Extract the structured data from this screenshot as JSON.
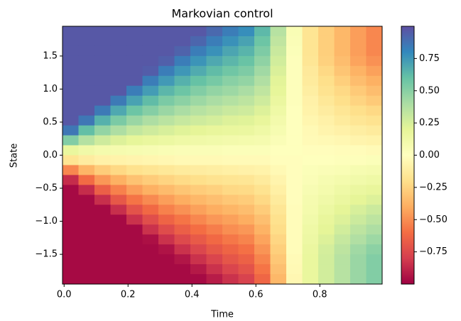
{
  "chart_data": {
    "type": "heatmap",
    "title": "Markovian control",
    "xlabel": "Time",
    "ylabel": "State",
    "colormap": "Spectral",
    "clim": [
      -1,
      1
    ],
    "x": [
      0.02,
      0.07,
      0.12,
      0.17,
      0.22,
      0.27,
      0.32,
      0.37,
      0.42,
      0.47,
      0.52,
      0.57,
      0.62,
      0.67,
      0.72,
      0.77,
      0.82,
      0.87,
      0.92,
      0.97
    ],
    "y": [
      1.875,
      1.725,
      1.575,
      1.425,
      1.275,
      1.125,
      0.975,
      0.825,
      0.675,
      0.525,
      0.375,
      0.225,
      0.075,
      -0.075,
      -0.225,
      -0.375,
      -0.525,
      -0.675,
      -0.825,
      -0.975,
      -1.125,
      -1.275,
      -1.425,
      -1.575,
      -1.725,
      -1.875
    ],
    "z": [
      [
        0.97,
        0.97,
        0.97,
        0.97,
        0.97,
        0.97,
        0.97,
        0.97,
        0.97,
        0.91,
        0.84,
        0.78,
        0.63,
        0.36,
        0.05,
        -0.17,
        -0.27,
        -0.36,
        -0.45,
        -0.52
      ],
      [
        0.97,
        0.97,
        0.97,
        0.97,
        0.97,
        0.97,
        0.97,
        0.97,
        0.92,
        0.84,
        0.77,
        0.71,
        0.58,
        0.33,
        0.04,
        -0.17,
        -0.27,
        -0.36,
        -0.45,
        -0.52
      ],
      [
        0.97,
        0.97,
        0.97,
        0.97,
        0.97,
        0.97,
        0.97,
        0.93,
        0.84,
        0.77,
        0.7,
        0.65,
        0.53,
        0.3,
        0.03,
        -0.17,
        -0.27,
        -0.36,
        -0.45,
        -0.52
      ],
      [
        0.97,
        0.97,
        0.97,
        0.97,
        0.97,
        0.97,
        0.94,
        0.84,
        0.76,
        0.69,
        0.64,
        0.59,
        0.48,
        0.27,
        0.02,
        -0.16,
        -0.26,
        -0.34,
        -0.43,
        -0.49
      ],
      [
        0.97,
        0.97,
        0.97,
        0.97,
        0.97,
        0.95,
        0.84,
        0.75,
        0.68,
        0.62,
        0.57,
        0.53,
        0.43,
        0.24,
        0.02,
        -0.14,
        -0.23,
        -0.31,
        -0.38,
        -0.44
      ],
      [
        0.97,
        0.97,
        0.97,
        0.97,
        0.97,
        0.84,
        0.74,
        0.66,
        0.6,
        0.55,
        0.5,
        0.47,
        0.38,
        0.21,
        0.02,
        -0.13,
        -0.2,
        -0.27,
        -0.34,
        -0.39
      ],
      [
        0.97,
        0.97,
        0.97,
        0.97,
        0.84,
        0.73,
        0.64,
        0.58,
        0.52,
        0.47,
        0.44,
        0.4,
        0.33,
        0.19,
        0.02,
        -0.11,
        -0.18,
        -0.23,
        -0.29,
        -0.34
      ],
      [
        0.97,
        0.97,
        0.97,
        0.85,
        0.71,
        0.62,
        0.54,
        0.49,
        0.44,
        0.4,
        0.37,
        0.34,
        0.28,
        0.16,
        0.02,
        -0.09,
        -0.15,
        -0.2,
        -0.25,
        -0.29
      ],
      [
        0.97,
        0.97,
        0.85,
        0.69,
        0.58,
        0.51,
        0.45,
        0.4,
        0.36,
        0.33,
        0.3,
        0.28,
        0.23,
        0.13,
        0.01,
        -0.08,
        -0.12,
        -0.16,
        -0.2,
        -0.23
      ],
      [
        0.97,
        0.86,
        0.66,
        0.54,
        0.45,
        0.39,
        0.35,
        0.31,
        0.28,
        0.26,
        0.23,
        0.22,
        0.18,
        0.1,
        0.01,
        -0.06,
        -0.09,
        -0.13,
        -0.16,
        -0.18
      ],
      [
        0.86,
        0.61,
        0.47,
        0.39,
        0.32,
        0.28,
        0.25,
        0.22,
        0.2,
        0.18,
        0.17,
        0.16,
        0.13,
        0.07,
        0.01,
        -0.04,
        -0.07,
        -0.09,
        -0.11,
        -0.13
      ],
      [
        0.52,
        0.37,
        0.28,
        0.23,
        0.19,
        0.17,
        0.15,
        0.13,
        0.12,
        0.11,
        0.1,
        0.09,
        0.08,
        0.04,
        0.01,
        -0.03,
        -0.04,
        -0.05,
        -0.07,
        -0.08
      ],
      [
        0.17,
        0.12,
        0.09,
        0.08,
        0.07,
        0.06,
        0.05,
        0.04,
        0.04,
        0.04,
        0.03,
        0.03,
        0.03,
        0.01,
        0.01,
        -0.01,
        -0.01,
        -0.02,
        -0.02,
        -0.03
      ],
      [
        -0.17,
        -0.12,
        -0.09,
        -0.08,
        -0.07,
        -0.06,
        -0.05,
        -0.04,
        -0.04,
        -0.04,
        -0.03,
        -0.03,
        -0.03,
        -0.01,
        -0.01,
        0.01,
        0.01,
        0.02,
        0.02,
        0.03
      ],
      [
        -0.52,
        -0.37,
        -0.28,
        -0.23,
        -0.19,
        -0.17,
        -0.15,
        -0.13,
        -0.12,
        -0.11,
        -0.1,
        -0.09,
        -0.08,
        -0.04,
        -0.01,
        0.03,
        0.04,
        0.05,
        0.07,
        0.08
      ],
      [
        -0.86,
        -0.61,
        -0.47,
        -0.39,
        -0.32,
        -0.28,
        -0.25,
        -0.22,
        -0.2,
        -0.18,
        -0.17,
        -0.16,
        -0.13,
        -0.07,
        -0.01,
        0.04,
        0.07,
        0.09,
        0.11,
        0.13
      ],
      [
        -0.97,
        -0.86,
        -0.66,
        -0.54,
        -0.45,
        -0.39,
        -0.35,
        -0.31,
        -0.28,
        -0.26,
        -0.23,
        -0.22,
        -0.18,
        -0.1,
        -0.01,
        0.06,
        0.09,
        0.13,
        0.16,
        0.18
      ],
      [
        -0.97,
        -0.97,
        -0.85,
        -0.69,
        -0.58,
        -0.51,
        -0.45,
        -0.4,
        -0.36,
        -0.33,
        -0.3,
        -0.28,
        -0.23,
        -0.13,
        -0.01,
        0.08,
        0.12,
        0.16,
        0.2,
        0.23
      ],
      [
        -0.97,
        -0.97,
        -0.97,
        -0.85,
        -0.71,
        -0.62,
        -0.54,
        -0.49,
        -0.44,
        -0.4,
        -0.37,
        -0.34,
        -0.28,
        -0.16,
        -0.02,
        0.09,
        0.15,
        0.2,
        0.25,
        0.29
      ],
      [
        -0.97,
        -0.97,
        -0.97,
        -0.97,
        -0.84,
        -0.73,
        -0.64,
        -0.58,
        -0.52,
        -0.47,
        -0.44,
        -0.4,
        -0.33,
        -0.19,
        -0.02,
        0.11,
        0.18,
        0.23,
        0.29,
        0.34
      ],
      [
        -0.97,
        -0.97,
        -0.97,
        -0.97,
        -0.97,
        -0.84,
        -0.74,
        -0.66,
        -0.6,
        -0.55,
        -0.5,
        -0.47,
        -0.38,
        -0.21,
        -0.02,
        0.13,
        0.2,
        0.27,
        0.34,
        0.39
      ],
      [
        -0.97,
        -0.97,
        -0.97,
        -0.97,
        -0.97,
        -0.95,
        -0.84,
        -0.75,
        -0.68,
        -0.62,
        -0.57,
        -0.53,
        -0.43,
        -0.24,
        -0.02,
        0.14,
        0.23,
        0.31,
        0.38,
        0.44
      ],
      [
        -0.97,
        -0.97,
        -0.97,
        -0.97,
        -0.97,
        -0.97,
        -0.94,
        -0.84,
        -0.76,
        -0.69,
        -0.64,
        -0.59,
        -0.48,
        -0.27,
        -0.02,
        0.16,
        0.26,
        0.34,
        0.43,
        0.49
      ],
      [
        -0.97,
        -0.97,
        -0.97,
        -0.97,
        -0.97,
        -0.97,
        -0.97,
        -0.93,
        -0.84,
        -0.77,
        -0.7,
        -0.65,
        -0.53,
        -0.3,
        -0.03,
        0.17,
        0.27,
        0.36,
        0.45,
        0.52
      ],
      [
        -0.97,
        -0.97,
        -0.97,
        -0.97,
        -0.97,
        -0.97,
        -0.97,
        -0.97,
        -0.92,
        -0.84,
        -0.77,
        -0.71,
        -0.58,
        -0.33,
        -0.04,
        0.17,
        0.27,
        0.36,
        0.45,
        0.52
      ],
      [
        -0.97,
        -0.97,
        -0.97,
        -0.97,
        -0.97,
        -0.97,
        -0.97,
        -0.97,
        -0.97,
        -0.91,
        -0.84,
        -0.78,
        -0.63,
        -0.36,
        -0.05,
        0.17,
        0.27,
        0.36,
        0.45,
        0.52
      ]
    ],
    "xlim": [
      -0.005,
      0.995
    ],
    "ylim": [
      -1.95,
      1.95
    ],
    "xticks": [
      {
        "value": 0,
        "label": "0.0"
      },
      0.2,
      0.4,
      0.6,
      0.8
    ],
    "yticks": [
      {
        "value": -1.5,
        "label": "−1.5"
      },
      {
        "value": -1,
        "label": "−1.0"
      },
      {
        "value": -0.5,
        "label": "−0.5"
      },
      {
        "value": 0,
        "label": "0.0"
      },
      0.5,
      {
        "value": 1,
        "label": "1.0"
      },
      1.5
    ],
    "cticks": [
      {
        "value": -0.75,
        "label": "−0.75"
      },
      {
        "value": -0.5,
        "label": "−0.50"
      },
      {
        "value": -0.25,
        "label": "−0.25"
      },
      {
        "value": 0,
        "label": "0.00"
      },
      0.25,
      {
        "value": 0.5,
        "label": "0.50"
      },
      0.75
    ]
  }
}
